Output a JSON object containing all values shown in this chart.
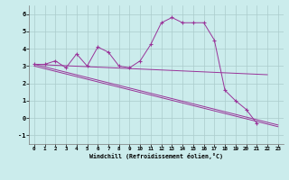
{
  "x": [
    0,
    1,
    2,
    3,
    4,
    5,
    6,
    7,
    8,
    9,
    10,
    11,
    12,
    13,
    14,
    15,
    16,
    17,
    18,
    19,
    20,
    21,
    22,
    23
  ],
  "line_jagged": [
    3.1,
    3.1,
    3.3,
    2.9,
    3.7,
    3.0,
    4.1,
    3.8,
    3.0,
    2.9,
    3.3,
    4.25,
    5.5,
    5.8,
    5.5,
    5.5,
    5.5,
    4.5,
    1.6,
    1.0,
    0.5,
    -0.3,
    null,
    null
  ],
  "line_upper": [
    [
      0,
      3.1
    ],
    [
      22,
      2.5
    ]
  ],
  "line_lower1": [
    [
      0,
      3.1
    ],
    [
      23,
      -0.4
    ]
  ],
  "line_lower2": [
    [
      0,
      3.0
    ],
    [
      23,
      -0.5
    ]
  ],
  "color": "#993399",
  "bg_color": "#cbecec",
  "grid_color": "#aacccc",
  "xlabel": "Windchill (Refroidissement éolien,°C)",
  "xlim": [
    -0.5,
    23.5
  ],
  "ylim": [
    -1.5,
    6.5
  ],
  "xticks": [
    0,
    1,
    2,
    3,
    4,
    5,
    6,
    7,
    8,
    9,
    10,
    11,
    12,
    13,
    14,
    15,
    16,
    17,
    18,
    19,
    20,
    21,
    22,
    23
  ],
  "yticks": [
    -1,
    0,
    1,
    2,
    3,
    4,
    5,
    6
  ],
  "figsize": [
    3.2,
    2.0
  ],
  "dpi": 100
}
